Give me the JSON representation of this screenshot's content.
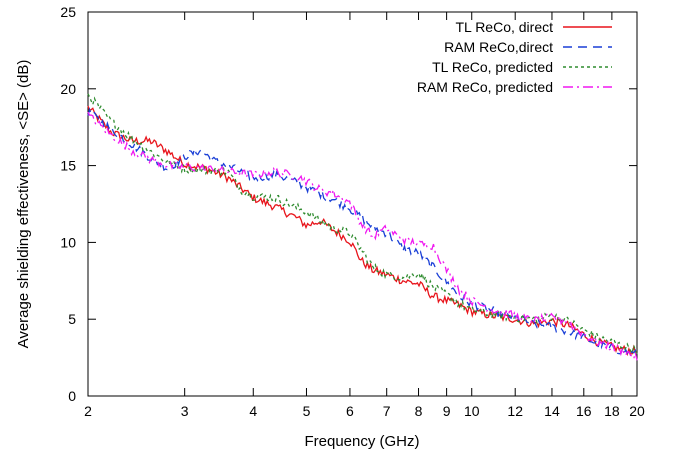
{
  "chart_data": {
    "type": "line",
    "title": "",
    "xlabel": "Frequency (GHz)",
    "ylabel": "Average shielding effectiveness, <SE> (dB)",
    "x_scale": "log",
    "xlim": [
      2,
      20
    ],
    "ylim": [
      0,
      25
    ],
    "x_ticks": [
      2,
      3,
      4,
      5,
      6,
      7,
      8,
      9,
      10,
      12,
      14,
      16,
      18,
      20
    ],
    "y_ticks": [
      0,
      5,
      10,
      15,
      20,
      25
    ],
    "grid": false,
    "legend_position": "top-right",
    "series": [
      {
        "name": "TL ReCo, direct",
        "color": "#e8141b",
        "dash": "solid",
        "points": [
          [
            2.0,
            18.8
          ],
          [
            2.2,
            17.2
          ],
          [
            2.4,
            16.6
          ],
          [
            2.6,
            16.6
          ],
          [
            2.8,
            15.9
          ],
          [
            3.0,
            15.1
          ],
          [
            3.3,
            14.8
          ],
          [
            3.6,
            14.2
          ],
          [
            4.0,
            12.9
          ],
          [
            4.4,
            12.3
          ],
          [
            4.8,
            11.6
          ],
          [
            5.0,
            11.1
          ],
          [
            5.3,
            11.4
          ],
          [
            5.6,
            10.8
          ],
          [
            6.0,
            10.1
          ],
          [
            6.3,
            8.8
          ],
          [
            6.6,
            8.2
          ],
          [
            7.0,
            7.9
          ],
          [
            7.5,
            7.5
          ],
          [
            8.0,
            7.3
          ],
          [
            8.5,
            6.5
          ],
          [
            9.0,
            6.2
          ],
          [
            9.5,
            5.9
          ],
          [
            10,
            5.5
          ],
          [
            11,
            5.2
          ],
          [
            12,
            5.0
          ],
          [
            13,
            4.7
          ],
          [
            14,
            4.9
          ],
          [
            15,
            4.6
          ],
          [
            16,
            4.0
          ],
          [
            17,
            3.5
          ],
          [
            18,
            3.2
          ],
          [
            19,
            3.0
          ],
          [
            20,
            2.9
          ]
        ]
      },
      {
        "name": "RAM ReCo,direct",
        "color": "#1a3fd6",
        "dash": "dashed",
        "points": [
          [
            2.0,
            18.5
          ],
          [
            2.2,
            17.4
          ],
          [
            2.4,
            16.4
          ],
          [
            2.6,
            15.5
          ],
          [
            2.8,
            14.8
          ],
          [
            3.0,
            15.6
          ],
          [
            3.2,
            16.0
          ],
          [
            3.4,
            15.3
          ],
          [
            3.6,
            15.0
          ],
          [
            4.0,
            14.2
          ],
          [
            4.4,
            14.4
          ],
          [
            4.8,
            13.9
          ],
          [
            5.2,
            13.3
          ],
          [
            5.6,
            12.8
          ],
          [
            6.0,
            12.2
          ],
          [
            6.3,
            11.6
          ],
          [
            6.6,
            11.0
          ],
          [
            7.0,
            10.6
          ],
          [
            7.5,
            9.6
          ],
          [
            8.0,
            9.3
          ],
          [
            8.5,
            8.4
          ],
          [
            9.0,
            7.4
          ],
          [
            9.5,
            6.5
          ],
          [
            10,
            6.0
          ],
          [
            11,
            5.5
          ],
          [
            12,
            5.1
          ],
          [
            13,
            4.7
          ],
          [
            14,
            4.5
          ],
          [
            15,
            4.2
          ],
          [
            16,
            3.8
          ],
          [
            17,
            3.4
          ],
          [
            18,
            3.1
          ],
          [
            19,
            2.9
          ],
          [
            20,
            2.7
          ]
        ]
      },
      {
        "name": "TL ReCo, predicted",
        "color": "#2e8b2e",
        "dash": "dotted",
        "points": [
          [
            2.0,
            19.6
          ],
          [
            2.2,
            17.9
          ],
          [
            2.4,
            16.8
          ],
          [
            2.6,
            15.9
          ],
          [
            2.8,
            15.2
          ],
          [
            3.0,
            14.8
          ],
          [
            3.3,
            14.7
          ],
          [
            3.6,
            14.6
          ],
          [
            3.8,
            13.4
          ],
          [
            4.0,
            13.0
          ],
          [
            4.4,
            12.9
          ],
          [
            4.7,
            12.4
          ],
          [
            5.0,
            12.0
          ],
          [
            5.3,
            11.4
          ],
          [
            5.6,
            10.9
          ],
          [
            6.0,
            10.6
          ],
          [
            6.3,
            9.5
          ],
          [
            6.6,
            8.4
          ],
          [
            7.0,
            7.9
          ],
          [
            7.5,
            7.7
          ],
          [
            8.0,
            8.0
          ],
          [
            8.5,
            7.1
          ],
          [
            9.0,
            6.6
          ],
          [
            9.5,
            6.0
          ],
          [
            10,
            5.6
          ],
          [
            11,
            5.3
          ],
          [
            12,
            5.1
          ],
          [
            13,
            5.0
          ],
          [
            14,
            5.2
          ],
          [
            15,
            4.9
          ],
          [
            16,
            4.3
          ],
          [
            17,
            3.8
          ],
          [
            18,
            3.5
          ],
          [
            19,
            3.2
          ],
          [
            20,
            3.0
          ]
        ]
      },
      {
        "name": "RAM ReCo, predicted",
        "color": "#f018f0",
        "dash": "dashdot",
        "points": [
          [
            2.0,
            18.3
          ],
          [
            2.2,
            17.0
          ],
          [
            2.4,
            16.0
          ],
          [
            2.6,
            15.4
          ],
          [
            2.8,
            15.0
          ],
          [
            3.0,
            14.9
          ],
          [
            3.3,
            14.8
          ],
          [
            3.6,
            14.6
          ],
          [
            4.0,
            14.4
          ],
          [
            4.4,
            14.6
          ],
          [
            4.8,
            14.3
          ],
          [
            5.0,
            14.0
          ],
          [
            5.3,
            13.4
          ],
          [
            5.6,
            13.2
          ],
          [
            6.0,
            12.6
          ],
          [
            6.3,
            11.2
          ],
          [
            6.6,
            10.4
          ],
          [
            7.0,
            10.9
          ],
          [
            7.5,
            10.2
          ],
          [
            8.0,
            9.9
          ],
          [
            8.5,
            9.8
          ],
          [
            9.0,
            8.2
          ],
          [
            9.5,
            6.9
          ],
          [
            10,
            6.2
          ],
          [
            11,
            5.6
          ],
          [
            12,
            5.2
          ],
          [
            13,
            4.9
          ],
          [
            14,
            5.1
          ],
          [
            15,
            4.8
          ],
          [
            16,
            4.0
          ],
          [
            17,
            3.5
          ],
          [
            18,
            3.2
          ],
          [
            19,
            2.9
          ],
          [
            20,
            2.5
          ]
        ]
      }
    ]
  }
}
